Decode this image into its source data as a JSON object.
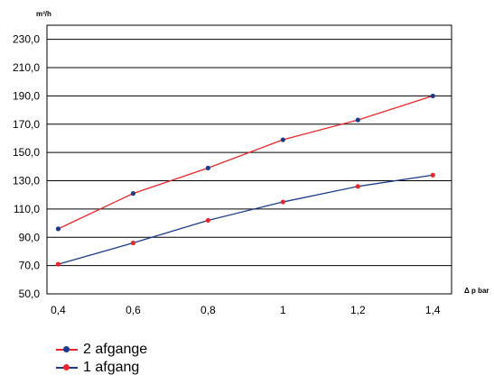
{
  "chart_data": {
    "type": "line",
    "ylabel": "m³/h",
    "xlabel": "Δ p bar",
    "x": [
      0.4,
      0.6,
      0.8,
      1.0,
      1.2,
      1.4
    ],
    "x_tick_labels": [
      "0,4",
      "0,6",
      "0,8",
      "1",
      "1,2",
      "1,4"
    ],
    "y_ticks": [
      50,
      70,
      90,
      110,
      130,
      150,
      170,
      190,
      210,
      230
    ],
    "y_tick_labels": [
      "50,0",
      "70,0",
      "90,0",
      "110,0",
      "130,0",
      "150,0",
      "170,0",
      "190,0",
      "210,0",
      "230,0"
    ],
    "ylim": [
      50,
      240
    ],
    "xlim": [
      0.37,
      1.45
    ],
    "grid": true,
    "legend_position": "bottom-left",
    "series": [
      {
        "name": "2 afgange",
        "values": [
          96,
          121,
          139,
          159,
          173,
          190
        ],
        "line_color": "#e8262a",
        "marker_color": "#1a3a8c"
      },
      {
        "name": "1 afgang",
        "values": [
          71,
          86,
          102,
          115,
          126,
          134
        ],
        "line_color": "#1a3a8c",
        "marker_color": "#e8262a"
      }
    ]
  }
}
